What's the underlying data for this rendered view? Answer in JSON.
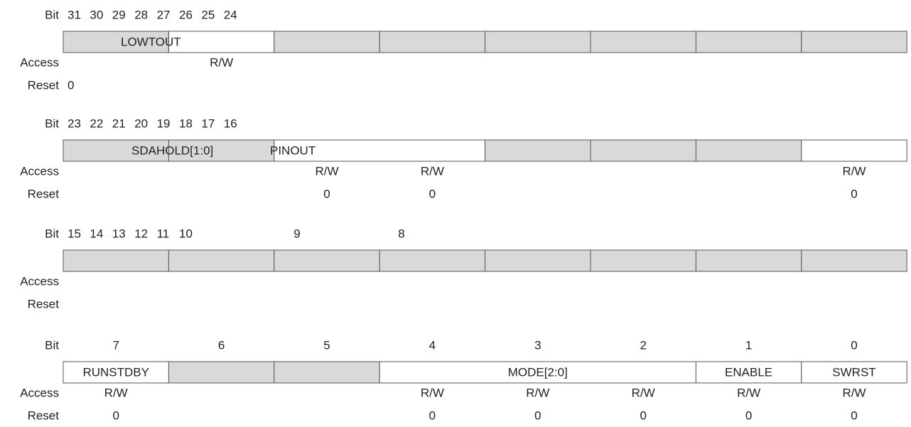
{
  "registers": [
    {
      "bit_label": "Bit",
      "bits": [
        31,
        30,
        29,
        28,
        27,
        26,
        25,
        24
      ],
      "fields": [
        "LOWTOUT"
      ],
      "access_label": "Access",
      "access": [
        null,
        "R/W",
        null,
        null,
        null,
        null,
        null,
        null
      ],
      "reset_label": "Reset",
      "reset": [
        0,
        null,
        null,
        null,
        null,
        null,
        null,
        null
      ]
    },
    {
      "bit_label": "Bit",
      "bits": [
        23,
        22,
        21,
        20,
        19,
        18,
        17,
        16
      ],
      "fields": [
        "SDAHOLD[1:0]",
        "PINOUT"
      ],
      "access_label": "Access",
      "access": [
        null,
        null,
        "R/W",
        "R/W",
        null,
        null,
        null,
        "R/W"
      ],
      "reset_label": "Reset",
      "reset": [
        null,
        null,
        0,
        0,
        null,
        null,
        null,
        0
      ]
    },
    {
      "bit_label": "Bit",
      "bits": [
        15,
        14,
        13,
        12,
        11,
        10,
        9,
        8
      ],
      "fields": [],
      "access_label": "Access",
      "access": [
        null,
        null,
        null,
        null,
        null,
        null,
        null,
        null
      ],
      "reset_label": "Reset",
      "reset": [
        null,
        null,
        null,
        null,
        null,
        null,
        null,
        null
      ]
    },
    {
      "bit_label": "Bit",
      "bits": [
        7,
        6,
        5,
        4,
        3,
        2,
        1,
        0
      ],
      "fields": [
        "RUNSTDBY",
        "MODE[2:0]",
        "ENABLE",
        "SWRST"
      ],
      "access_label": "Access",
      "access": [
        "R/W",
        null,
        null,
        "R/W",
        "R/W",
        "R/W",
        "R/W",
        "R/W"
      ],
      "reset_label": "Reset",
      "reset": [
        0,
        null,
        null,
        0,
        0,
        0,
        0,
        0
      ]
    }
  ]
}
